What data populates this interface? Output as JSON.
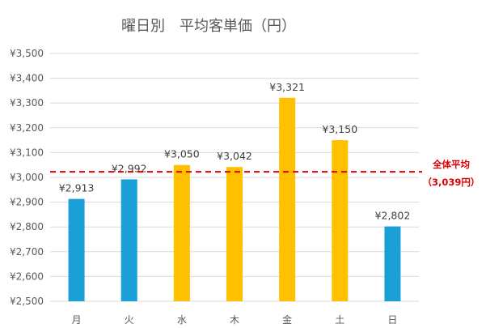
{
  "chart_data": {
    "type": "bar",
    "title": "曜日別　平均客単価（円）",
    "categories": [
      "月",
      "火",
      "水",
      "木",
      "金",
      "土",
      "日"
    ],
    "values": [
      2913,
      2992,
      3050,
      3042,
      3321,
      3150,
      2802
    ],
    "data_labels": [
      "¥2,913",
      "¥2,992",
      "¥3,050",
      "¥3,042",
      "¥3,321",
      "¥3,150",
      "¥2,802"
    ],
    "bar_colors": [
      "#1a9fd6",
      "#1a9fd6",
      "#ffc000",
      "#ffc000",
      "#ffc000",
      "#ffc000",
      "#1a9fd6"
    ],
    "ylim": [
      2500,
      3500
    ],
    "yticks": [
      2500,
      2600,
      2700,
      2800,
      2900,
      3000,
      3100,
      3200,
      3300,
      3400,
      3500
    ],
    "ytick_labels": [
      "¥2,500",
      "¥2,600",
      "¥2,700",
      "¥2,800",
      "¥2,900",
      "¥3,000",
      "¥3,100",
      "¥3,200",
      "¥3,300",
      "¥3,400",
      "¥3,500"
    ],
    "grid": true,
    "reference_line": {
      "value": 3039,
      "label_line1": "全体平均",
      "label_line2": "（3,039円）",
      "color": "#e00000",
      "style": "dashed"
    },
    "xlabel": "",
    "ylabel": ""
  }
}
